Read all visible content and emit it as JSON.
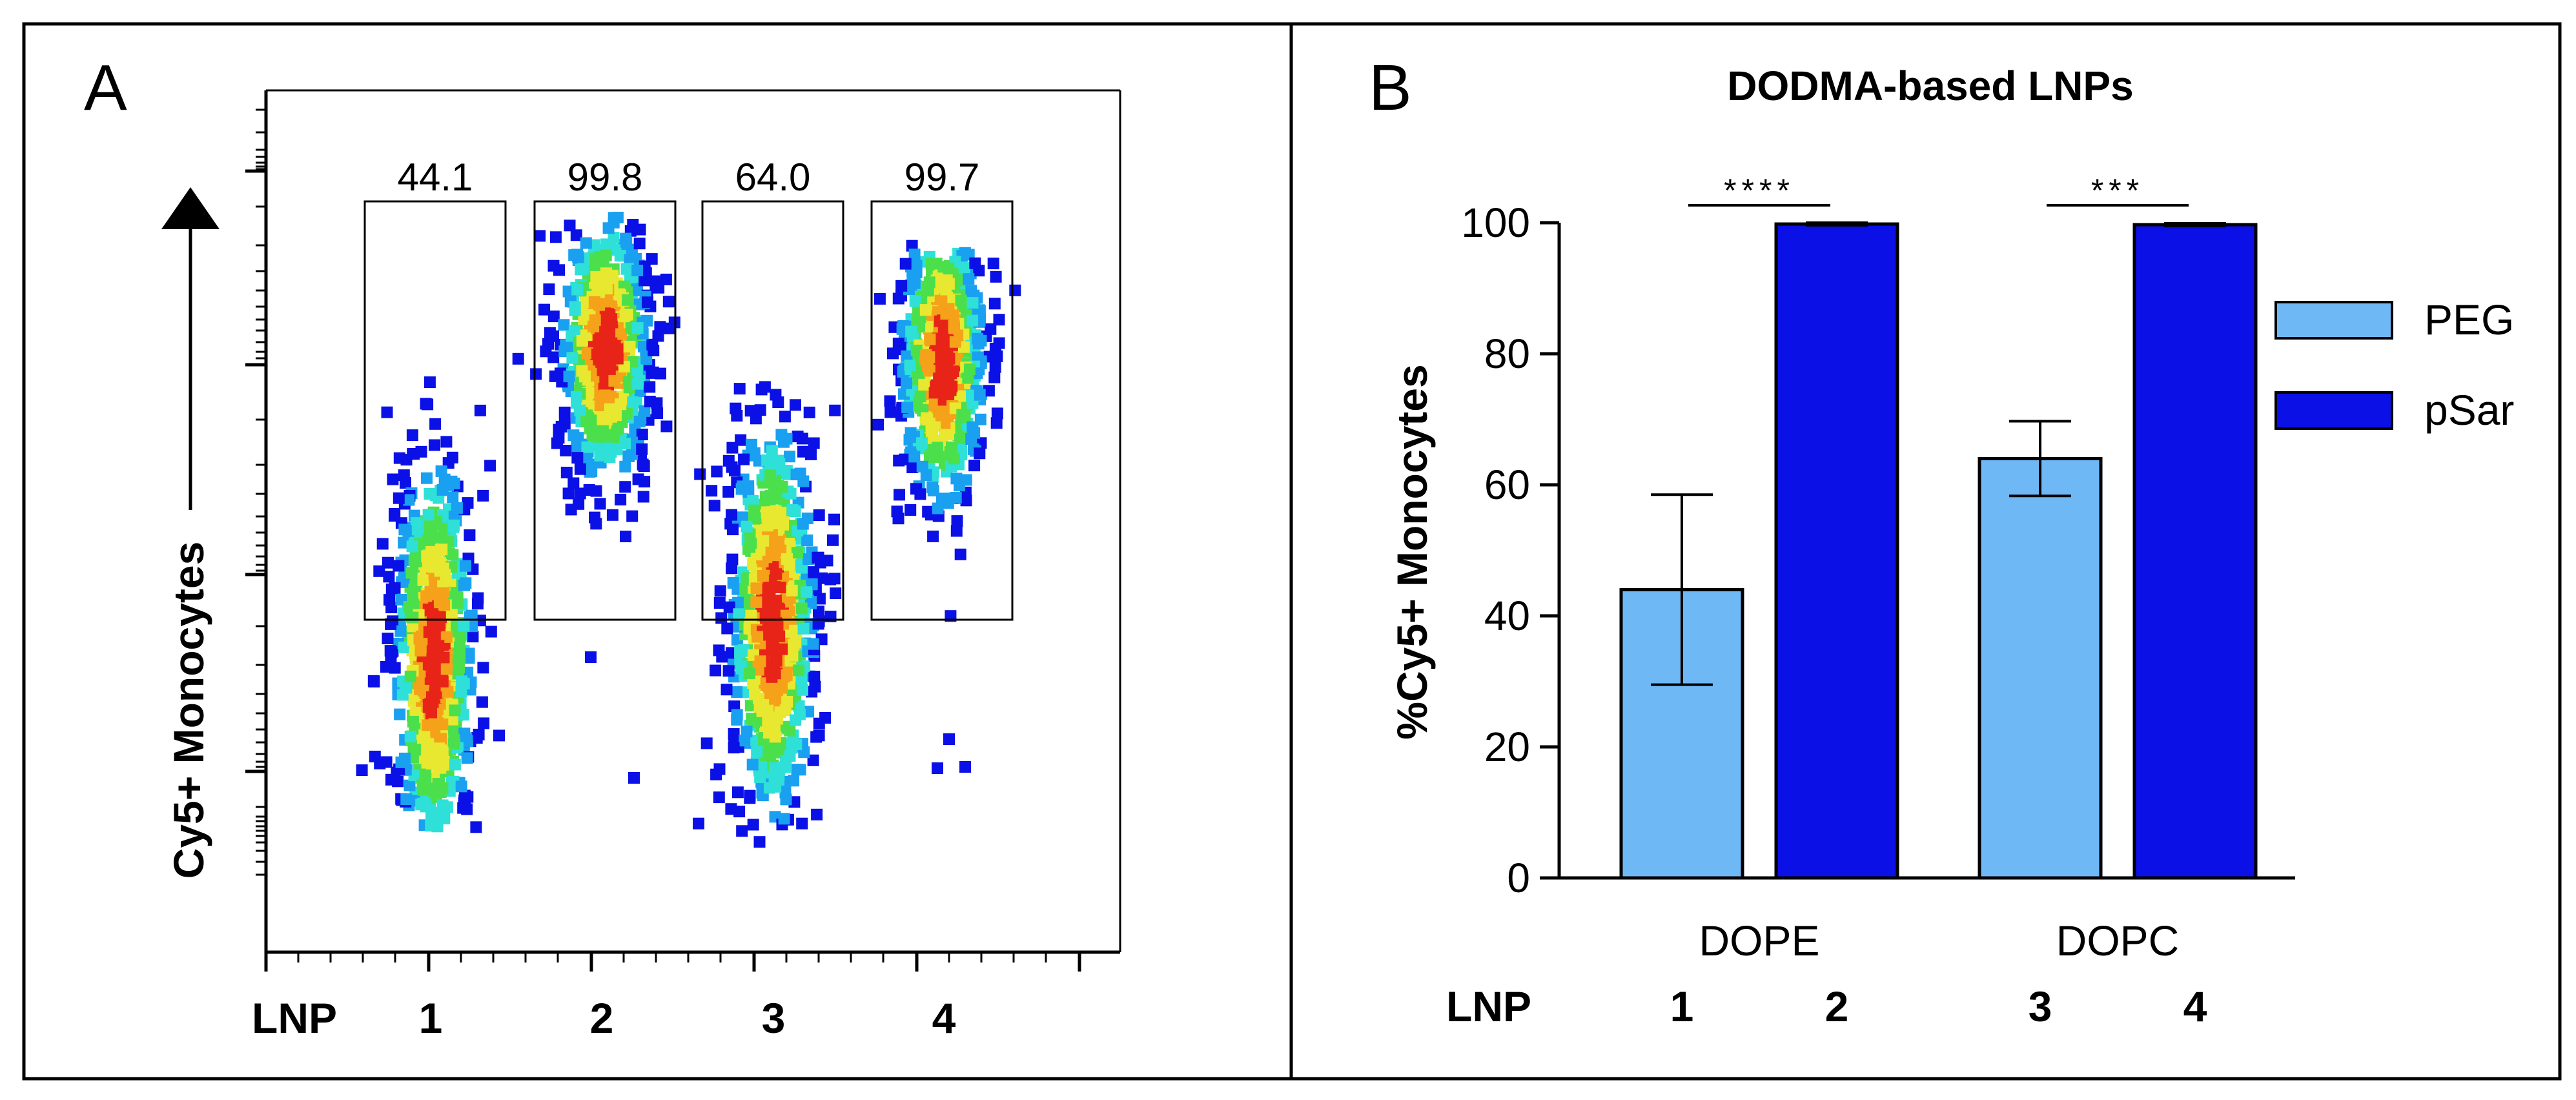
{
  "colors": {
    "peg": "#6fb8f6",
    "psar": "#0a10e6",
    "density": [
      "#0a10e6",
      "#1aa0f0",
      "#2ee0d8",
      "#4be04b",
      "#e8e830",
      "#f5a21a",
      "#e82418"
    ]
  },
  "panelA": {
    "letter": "A",
    "ylabel": "Cy5+ Monocytes",
    "lnp_label": "LNP",
    "lanes": [
      "1",
      "2",
      "3",
      "4"
    ],
    "gate_values": [
      "44.1",
      "99.8",
      "64.0",
      "99.7"
    ]
  },
  "panelB": {
    "letter": "B",
    "lnp_label": "LNP",
    "lnp_numbers": [
      "1",
      "2",
      "3",
      "4"
    ],
    "significance": [
      "****",
      "***"
    ]
  },
  "chart_data": {
    "type": "bar",
    "title": "DODMA-based LNPs",
    "ylabel": "%Cy5+ Monocytes",
    "xlabel": "",
    "categories": [
      "DOPE",
      "DOPC"
    ],
    "ylim": [
      0,
      100
    ],
    "yticks": [
      "0",
      "20",
      "40",
      "60",
      "80",
      "100"
    ],
    "series": [
      {
        "name": "PEG",
        "values": [
          44,
          64
        ],
        "error": [
          14.5,
          5.7
        ]
      },
      {
        "name": "pSar",
        "values": [
          99.8,
          99.7
        ],
        "error": [
          0.2,
          0.2
        ]
      }
    ],
    "legend_position": "right"
  }
}
